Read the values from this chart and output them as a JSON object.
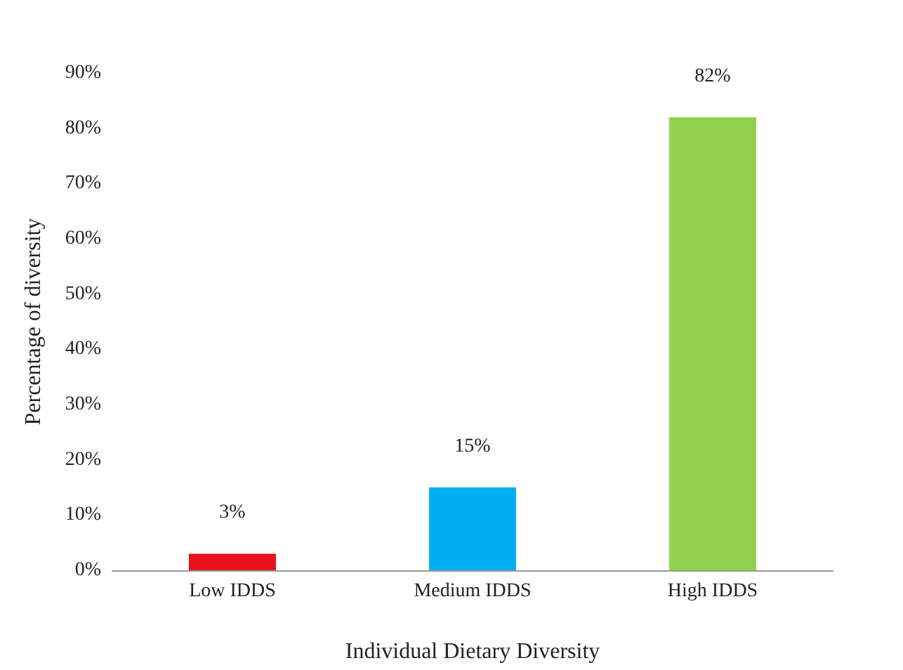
{
  "chart_data": {
    "type": "bar",
    "xlabel": "Individual Dietary Diversity",
    "ylabel": "Percentage of diversity",
    "categories": [
      "Low IDDS",
      "Medium IDDS",
      "High IDDS"
    ],
    "values": [
      3,
      15,
      82
    ],
    "colors": [
      "#e8121a",
      "#00b0f0",
      "#92d050"
    ],
    "value_labels": [
      "3%",
      "15%",
      "82%"
    ],
    "ylim": [
      0,
      90
    ],
    "yticks": [
      {
        "value": 0,
        "label": "0%"
      },
      {
        "value": 10,
        "label": "10%"
      },
      {
        "value": 20,
        "label": "20%"
      },
      {
        "value": 30,
        "label": "30%"
      },
      {
        "value": 40,
        "label": "40%"
      },
      {
        "value": 50,
        "label": "50%"
      },
      {
        "value": 60,
        "label": "60%"
      },
      {
        "value": 70,
        "label": "70%"
      },
      {
        "value": 80,
        "label": "80%"
      },
      {
        "value": 90,
        "label": "90%"
      }
    ],
    "grid": false
  }
}
